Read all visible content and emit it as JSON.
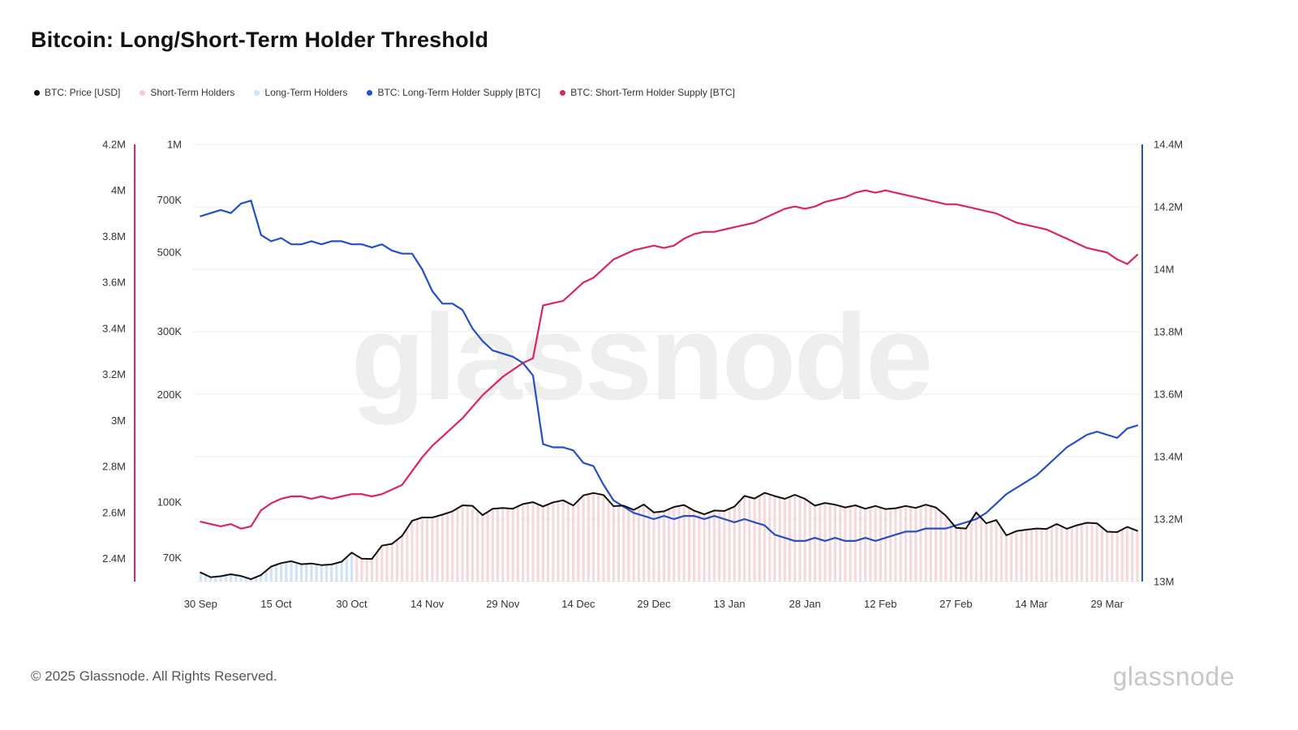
{
  "page": {
    "title": "Bitcoin: Long/Short-Term Holder Threshold",
    "watermark": "glassnode",
    "footer_copyright": "© 2025 Glassnode. All Rights Reserved.",
    "brand_wordmark": "glassnode"
  },
  "legend": {
    "items": [
      {
        "label": "BTC: Price [USD]",
        "color": "#111111"
      },
      {
        "label": "Short-Term Holders",
        "color": "#f3cdd3"
      },
      {
        "label": "Long-Term Holders",
        "color": "#cfe3f5"
      },
      {
        "label": "BTC: Long-Term Holder Supply [BTC]",
        "color": "#2350c8"
      },
      {
        "label": "BTC: Short-Term Holder Supply [BTC]",
        "color": "#d92563"
      }
    ]
  },
  "chart_data": {
    "type": "line",
    "title": "Bitcoin: Long/Short-Term Holder Threshold",
    "grid": "horizontal",
    "x": {
      "unit": "days since 30 Sep 2024",
      "sample_step_days": 2,
      "max_day": 186,
      "ticks": [
        {
          "label": "30 Sep",
          "day": 0
        },
        {
          "label": "15 Oct",
          "day": 15
        },
        {
          "label": "30 Oct",
          "day": 30
        },
        {
          "label": "14 Nov",
          "day": 45
        },
        {
          "label": "29 Nov",
          "day": 60
        },
        {
          "label": "14 Dec",
          "day": 75
        },
        {
          "label": "29 Dec",
          "day": 90
        },
        {
          "label": "13 Jan",
          "day": 105
        },
        {
          "label": "28 Jan",
          "day": 120
        },
        {
          "label": "12 Feb",
          "day": 135
        },
        {
          "label": "27 Feb",
          "day": 150
        },
        {
          "label": "14 Mar",
          "day": 165
        },
        {
          "label": "29 Mar",
          "day": 180
        }
      ]
    },
    "axes": {
      "price_usd_log": {
        "side": "inner-left",
        "scale": "log",
        "top": 1000000,
        "bottom": 60000,
        "ticks": [
          {
            "label": "1M",
            "value": 1000000
          },
          {
            "label": "700K",
            "value": 700000
          },
          {
            "label": "500K",
            "value": 500000
          },
          {
            "label": "300K",
            "value": 300000
          },
          {
            "label": "200K",
            "value": 200000
          },
          {
            "label": "100K",
            "value": 100000
          },
          {
            "label": "70K",
            "value": 70000
          }
        ]
      },
      "sth_supply": {
        "side": "outer-left",
        "scale": "linear",
        "top": 4.2,
        "bottom": 2.3,
        "unit": "M BTC",
        "color": "#d92563",
        "ticks": [
          {
            "label": "4.2M",
            "value": 4.2
          },
          {
            "label": "4M",
            "value": 4.0
          },
          {
            "label": "3.8M",
            "value": 3.8
          },
          {
            "label": "3.6M",
            "value": 3.6
          },
          {
            "label": "3.4M",
            "value": 3.4
          },
          {
            "label": "3.2M",
            "value": 3.2
          },
          {
            "label": "3M",
            "value": 3.0
          },
          {
            "label": "2.8M",
            "value": 2.8
          },
          {
            "label": "2.6M",
            "value": 2.6
          },
          {
            "label": "2.4M",
            "value": 2.4
          }
        ]
      },
      "lth_supply": {
        "side": "right",
        "scale": "linear",
        "top": 14.4,
        "bottom": 13.0,
        "unit": "M BTC",
        "color": "#2350c8",
        "ticks": [
          {
            "label": "14.4M",
            "value": 14.4
          },
          {
            "label": "14.2M",
            "value": 14.2
          },
          {
            "label": "14M",
            "value": 14.0
          },
          {
            "label": "13.8M",
            "value": 13.8
          },
          {
            "label": "13.6M",
            "value": 13.6
          },
          {
            "label": "13.4M",
            "value": 13.4
          },
          {
            "label": "13.2M",
            "value": 13.2
          },
          {
            "label": "13M",
            "value": 13.0
          }
        ]
      }
    },
    "series": [
      {
        "name": "BTC: Price [USD]",
        "axis": "price_usd_log",
        "color": "#111111",
        "unit": "USD",
        "values": [
          63600,
          61700,
          62100,
          62900,
          62200,
          60900,
          62600,
          66100,
          67600,
          68400,
          67100,
          67400,
          66700,
          67000,
          68200,
          72300,
          69500,
          69400,
          75600,
          76500,
          80500,
          88700,
          90600,
          90600,
          92300,
          94300,
          98000,
          97700,
          92000,
          95900,
          96400,
          95900,
          98800,
          100000,
          97300,
          99900,
          101200,
          97900,
          104500,
          106100,
          104800,
          97500,
          97800,
          95200,
          98500,
          93600,
          94300,
          97000,
          98200,
          94700,
          92500,
          94800,
          94500,
          97200,
          104100,
          102400,
          106200,
          104000,
          102200,
          104900,
          102200,
          97800,
          99500,
          98400,
          96700,
          98000,
          95900,
          97600,
          95700,
          96200,
          97600,
          96400,
          98400,
          96700,
          91600,
          84800,
          84400,
          93600,
          87300,
          89100,
          80800,
          83000,
          83800,
          84400,
          84200,
          86900,
          84300,
          86200,
          87600,
          87300,
          82700,
          82500,
          85300,
          83200
        ]
      },
      {
        "name": "BTC: Long-Term Holder Supply [BTC]",
        "axis": "lth_supply",
        "color": "#2350c8",
        "unit": "M BTC",
        "values": [
          14.17,
          14.18,
          14.19,
          14.18,
          14.21,
          14.22,
          14.11,
          14.09,
          14.1,
          14.08,
          14.08,
          14.09,
          14.08,
          14.09,
          14.09,
          14.08,
          14.08,
          14.07,
          14.08,
          14.06,
          14.05,
          14.05,
          14.0,
          13.93,
          13.89,
          13.89,
          13.87,
          13.81,
          13.77,
          13.74,
          13.73,
          13.72,
          13.7,
          13.66,
          13.44,
          13.43,
          13.43,
          13.42,
          13.38,
          13.37,
          13.31,
          13.26,
          13.24,
          13.22,
          13.21,
          13.2,
          13.21,
          13.2,
          13.21,
          13.21,
          13.2,
          13.21,
          13.2,
          13.19,
          13.2,
          13.19,
          13.18,
          13.15,
          13.14,
          13.13,
          13.13,
          13.14,
          13.13,
          13.14,
          13.13,
          13.13,
          13.14,
          13.13,
          13.14,
          13.15,
          13.16,
          13.16,
          13.17,
          13.17,
          13.17,
          13.18,
          13.19,
          13.2,
          13.22,
          13.25,
          13.28,
          13.3,
          13.32,
          13.34,
          13.37,
          13.4,
          13.43,
          13.45,
          13.47,
          13.48,
          13.47,
          13.46,
          13.49,
          13.5
        ]
      },
      {
        "name": "BTC: Short-Term Holder Supply [BTC]",
        "axis": "sth_supply",
        "color": "#d92563",
        "unit": "M BTC",
        "values": [
          2.56,
          2.55,
          2.54,
          2.55,
          2.53,
          2.54,
          2.61,
          2.64,
          2.66,
          2.67,
          2.67,
          2.66,
          2.67,
          2.66,
          2.67,
          2.68,
          2.68,
          2.67,
          2.68,
          2.7,
          2.72,
          2.78,
          2.84,
          2.89,
          2.93,
          2.97,
          3.01,
          3.06,
          3.11,
          3.15,
          3.19,
          3.22,
          3.25,
          3.27,
          3.5,
          3.51,
          3.52,
          3.56,
          3.6,
          3.62,
          3.66,
          3.7,
          3.72,
          3.74,
          3.75,
          3.76,
          3.75,
          3.76,
          3.79,
          3.81,
          3.82,
          3.82,
          3.83,
          3.84,
          3.85,
          3.86,
          3.88,
          3.9,
          3.92,
          3.93,
          3.92,
          3.93,
          3.95,
          3.96,
          3.97,
          3.99,
          4.0,
          3.99,
          4.0,
          3.99,
          3.98,
          3.97,
          3.96,
          3.95,
          3.94,
          3.94,
          3.93,
          3.92,
          3.91,
          3.9,
          3.88,
          3.86,
          3.85,
          3.84,
          3.83,
          3.81,
          3.79,
          3.77,
          3.75,
          3.74,
          3.73,
          3.7,
          3.68,
          3.72
        ]
      }
    ],
    "background_bands": {
      "fill_under": "BTC: Price [USD]",
      "segments": [
        {
          "label": "Long-Term Holders",
          "from_day": 0,
          "to_day": 30,
          "color": "#cfe3f5"
        },
        {
          "label": "Short-Term Holders",
          "from_day": 31,
          "to_day": 186,
          "color": "#f6d9dd"
        }
      ]
    }
  }
}
